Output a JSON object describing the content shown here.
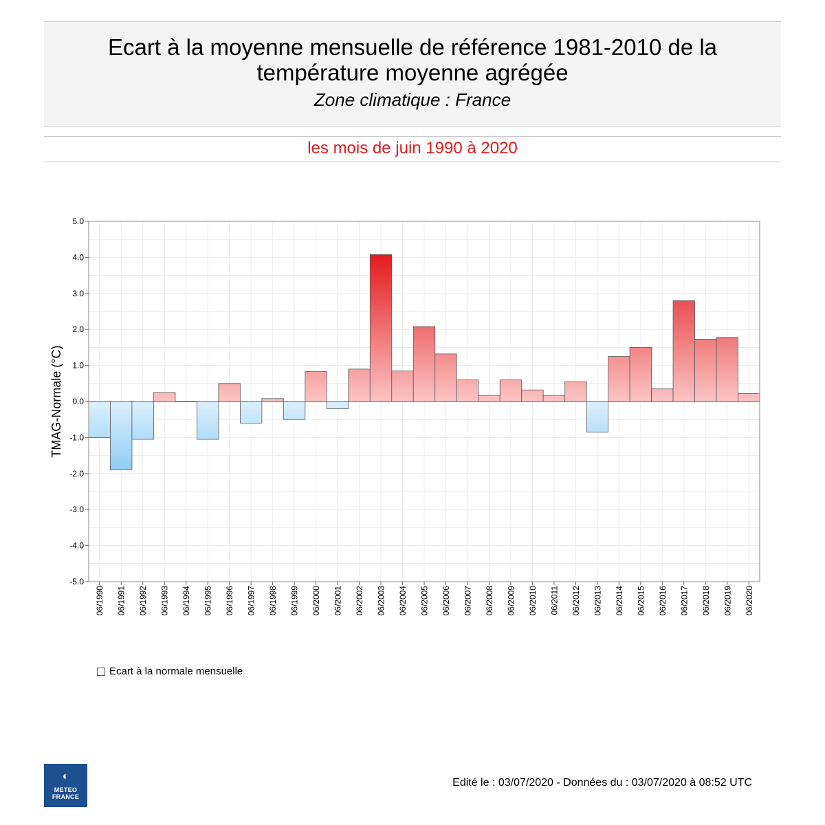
{
  "header": {
    "title_line1": "Ecart à la moyenne mensuelle de référence 1981-2010 de la",
    "title_line2": "température moyenne  agrégée",
    "zone": "Zone climatique : France"
  },
  "period": "les mois de juin 1990 à 2020",
  "colors": {
    "positive_light": "#fbc4c4",
    "positive_strong": "#e31a1c",
    "negative_light": "#dcf0fc",
    "negative_strong": "#8ccaf5",
    "period_text": "#e31a1c"
  },
  "chart_data": {
    "type": "bar",
    "ylabel": "TMAG-Normale (°C)",
    "ylim": [
      -5.0,
      5.0
    ],
    "yticks": [
      "5.0",
      "4.0",
      "3.0",
      "2.0",
      "1.0",
      "0.0",
      "-1.0",
      "-2.0",
      "-3.0",
      "-4.0",
      "-5.0"
    ],
    "grid": true,
    "legend_position": "bottom-left",
    "categories": [
      "06/1990",
      "06/1991",
      "06/1992",
      "06/1993",
      "06/1994",
      "06/1995",
      "06/1996",
      "06/1997",
      "06/1998",
      "06/1999",
      "06/2000",
      "06/2001",
      "06/2002",
      "06/2003",
      "06/2004",
      "06/2005",
      "06/2006",
      "06/2007",
      "06/2008",
      "06/2009",
      "06/2010",
      "06/2011",
      "06/2012",
      "06/2013",
      "06/2014",
      "06/2015",
      "06/2016",
      "06/2017",
      "06/2018",
      "06/2019",
      "06/2020"
    ],
    "values": [
      -1.0,
      -1.9,
      -1.05,
      0.25,
      0.0,
      -1.05,
      0.5,
      -0.6,
      0.08,
      -0.5,
      0.83,
      -0.2,
      0.9,
      4.08,
      0.85,
      2.08,
      1.32,
      0.6,
      0.17,
      0.6,
      0.32,
      0.17,
      0.55,
      -0.85,
      1.25,
      1.5,
      0.35,
      2.8,
      1.73,
      1.78,
      0.22
    ],
    "series": [
      {
        "name": "Ecart à la normale mensuelle"
      }
    ]
  },
  "legend": {
    "label": "Ecart à la normale mensuelle"
  },
  "logo": {
    "line1": "METEO",
    "line2": "FRANCE"
  },
  "footer": {
    "text": "Edité le : 03/07/2020 - Données du : 03/07/2020 à 08:52 UTC"
  }
}
